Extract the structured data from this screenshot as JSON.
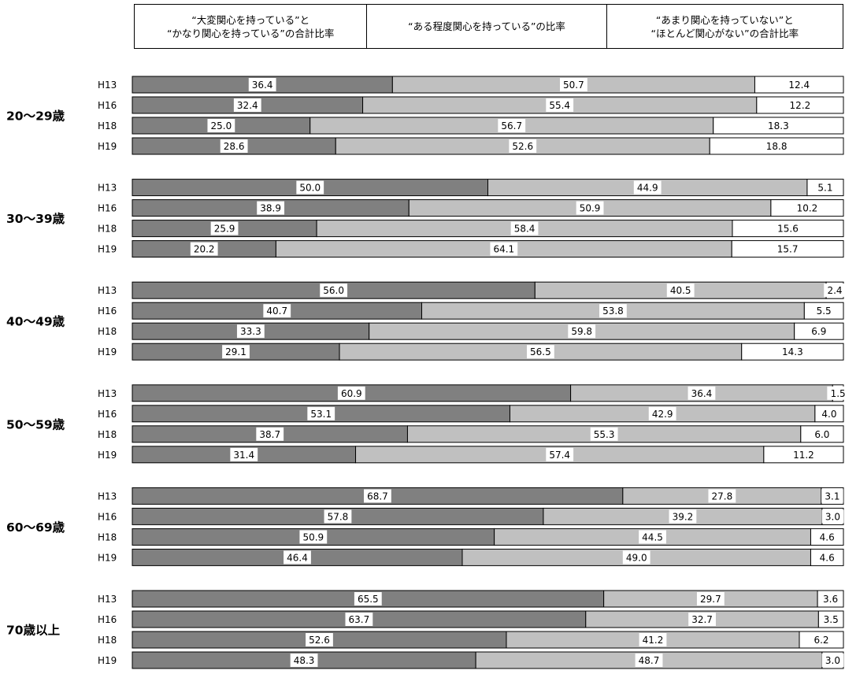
{
  "legend": {
    "high": [
      "“大変関心を持っている”と",
      "“かなり関心を持っている”の合計比率"
    ],
    "mid": [
      "“ある程度関心を持っている”の比率"
    ],
    "low": [
      "“あまり関心を持っていない”と",
      "“ほとんど関心がない”の合計比率"
    ]
  },
  "colors": {
    "high": "#808080",
    "mid": "#c0c0c0",
    "low": "#ffffff"
  },
  "chart_data": {
    "type": "bar",
    "orientation": "horizontal",
    "stacked": true,
    "series": [
      {
        "name": "“大変関心を持っている”と“かなり関心を持っている”の合計比率",
        "key": "high"
      },
      {
        "name": "“ある程度関心を持っている”の比率",
        "key": "mid"
      },
      {
        "name": "“あまり関心を持っていない”と“ほとんど関心がない”の合計比率",
        "key": "low"
      }
    ],
    "groups": [
      {
        "label": "20～29歳",
        "rows": [
          {
            "year": "H13",
            "values": [
              36.4,
              50.7,
              12.4
            ]
          },
          {
            "year": "H16",
            "values": [
              32.4,
              55.4,
              12.2
            ]
          },
          {
            "year": "H18",
            "values": [
              25.0,
              56.7,
              18.3
            ]
          },
          {
            "year": "H19",
            "values": [
              28.6,
              52.6,
              18.8
            ]
          }
        ]
      },
      {
        "label": "30～39歳",
        "rows": [
          {
            "year": "H13",
            "values": [
              50.0,
              44.9,
              5.1
            ]
          },
          {
            "year": "H16",
            "values": [
              38.9,
              50.9,
              10.2
            ]
          },
          {
            "year": "H18",
            "values": [
              25.9,
              58.4,
              15.6
            ]
          },
          {
            "year": "H19",
            "values": [
              20.2,
              64.1,
              15.7
            ]
          }
        ]
      },
      {
        "label": "40～49歳",
        "rows": [
          {
            "year": "H13",
            "values": [
              56.0,
              40.5,
              2.4
            ]
          },
          {
            "year": "H16",
            "values": [
              40.7,
              53.8,
              5.5
            ]
          },
          {
            "year": "H18",
            "values": [
              33.3,
              59.8,
              6.9
            ]
          },
          {
            "year": "H19",
            "values": [
              29.1,
              56.5,
              14.3
            ]
          }
        ]
      },
      {
        "label": "50～59歳",
        "rows": [
          {
            "year": "H13",
            "values": [
              60.9,
              36.4,
              1.5
            ]
          },
          {
            "year": "H16",
            "values": [
              53.1,
              42.9,
              4.0
            ]
          },
          {
            "year": "H18",
            "values": [
              38.7,
              55.3,
              6.0
            ]
          },
          {
            "year": "H19",
            "values": [
              31.4,
              57.4,
              11.2
            ]
          }
        ]
      },
      {
        "label": "60～69歳",
        "rows": [
          {
            "year": "H13",
            "values": [
              68.7,
              27.8,
              3.1
            ]
          },
          {
            "year": "H16",
            "values": [
              57.8,
              39.2,
              3.0
            ]
          },
          {
            "year": "H18",
            "values": [
              50.9,
              44.5,
              4.6
            ]
          },
          {
            "year": "H19",
            "values": [
              46.4,
              49.0,
              4.6
            ]
          }
        ]
      },
      {
        "label": "70歳以上",
        "rows": [
          {
            "year": "H13",
            "values": [
              65.5,
              29.7,
              3.6
            ]
          },
          {
            "year": "H16",
            "values": [
              63.7,
              32.7,
              3.5
            ]
          },
          {
            "year": "H18",
            "values": [
              52.6,
              41.2,
              6.2
            ]
          },
          {
            "year": "H19",
            "values": [
              48.3,
              48.7,
              3.0
            ]
          }
        ]
      }
    ]
  }
}
